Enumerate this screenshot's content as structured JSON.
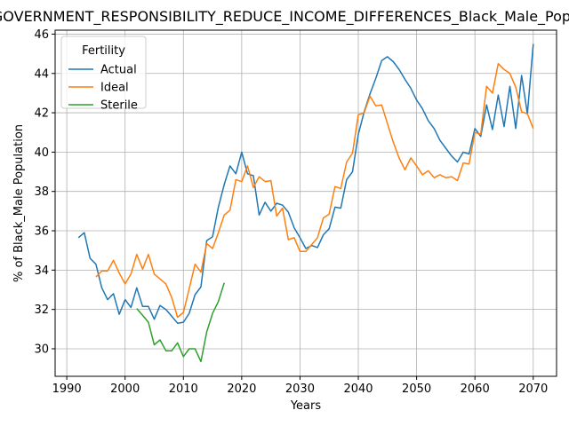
{
  "chart_data": {
    "type": "line",
    "title": "GOVERNMENT_RESPONSIBILITY_REDUCE_INCOME_DIFFERENCES_Black_Male_Population",
    "xlabel": "Years",
    "ylabel": "% of Black_Male Population",
    "xlim": [
      1988,
      2074
    ],
    "ylim": [
      28.6,
      46.2
    ],
    "xticks": [
      1990,
      2000,
      2010,
      2020,
      2030,
      2040,
      2050,
      2060,
      2070
    ],
    "yticks": [
      30,
      32,
      34,
      36,
      38,
      40,
      42,
      44,
      46
    ],
    "grid": true,
    "legend": {
      "title": "Fertility",
      "placement": "top-left"
    },
    "colors": {
      "Actual": "#1f77b4",
      "Ideal": "#ff7f0e",
      "Sterile": "#2ca02c"
    },
    "series": [
      {
        "name": "Actual",
        "x": [
          1992,
          1993,
          1994,
          1995,
          1996,
          1997,
          1998,
          1999,
          2000,
          2001,
          2002,
          2003,
          2004,
          2005,
          2006,
          2007,
          2008,
          2009,
          2010,
          2011,
          2012,
          2013,
          2014,
          2015,
          2016,
          2017,
          2018,
          2019,
          2020,
          2021,
          2022,
          2023,
          2024,
          2025,
          2026,
          2027,
          2028,
          2029,
          2030,
          2031,
          2032,
          2033,
          2034,
          2035,
          2036,
          2037,
          2038,
          2039,
          2040,
          2041,
          2042,
          2043,
          2044,
          2045,
          2046,
          2047,
          2048,
          2049,
          2050,
          2051,
          2052,
          2053,
          2054,
          2055,
          2056,
          2057,
          2058,
          2059,
          2060,
          2061,
          2062,
          2063,
          2064,
          2065,
          2066,
          2067,
          2068,
          2069,
          2070
        ],
        "values": [
          35.65,
          35.9,
          34.6,
          34.3,
          33.1,
          32.5,
          32.8,
          31.75,
          32.5,
          32.1,
          33.1,
          32.15,
          32.15,
          31.5,
          32.2,
          32.0,
          31.65,
          31.3,
          31.35,
          31.8,
          32.75,
          33.15,
          35.5,
          35.7,
          37.2,
          38.35,
          39.3,
          38.9,
          40.0,
          38.9,
          38.8,
          36.8,
          37.45,
          37.0,
          37.4,
          37.3,
          36.95,
          36.15,
          35.65,
          35.1,
          35.25,
          35.15,
          35.8,
          36.1,
          37.2,
          37.15,
          38.6,
          39.0,
          40.9,
          42.05,
          42.95,
          43.75,
          44.65,
          44.85,
          44.6,
          44.2,
          43.7,
          43.25,
          42.65,
          42.2,
          41.6,
          41.2,
          40.6,
          40.2,
          39.8,
          39.5,
          40.0,
          39.9,
          41.2,
          40.8,
          42.4,
          41.15,
          42.9,
          41.3,
          43.35,
          41.2,
          43.9,
          41.95,
          45.5
        ]
      },
      {
        "name": "Ideal",
        "x": [
          1995,
          1996,
          1997,
          1998,
          1999,
          2000,
          2001,
          2002,
          2003,
          2004,
          2005,
          2006,
          2007,
          2008,
          2009,
          2010,
          2011,
          2012,
          2013,
          2014,
          2015,
          2016,
          2017,
          2018,
          2019,
          2020,
          2021,
          2022,
          2023,
          2024,
          2025,
          2026,
          2027,
          2028,
          2029,
          2030,
          2031,
          2032,
          2033,
          2034,
          2035,
          2036,
          2037,
          2038,
          2039,
          2040,
          2041,
          2042,
          2043,
          2044,
          2045,
          2046,
          2047,
          2048,
          2049,
          2050,
          2051,
          2052,
          2053,
          2054,
          2055,
          2056,
          2057,
          2058,
          2059,
          2060,
          2061,
          2062,
          2063,
          2064,
          2065,
          2066,
          2067,
          2068,
          2069,
          2070
        ],
        "values": [
          33.65,
          33.95,
          33.95,
          34.5,
          33.85,
          33.3,
          33.8,
          34.8,
          34.05,
          34.8,
          33.8,
          33.55,
          33.3,
          32.6,
          31.6,
          31.85,
          33.05,
          34.3,
          33.9,
          35.35,
          35.1,
          35.9,
          36.8,
          37.05,
          38.6,
          38.5,
          39.3,
          38.2,
          38.75,
          38.5,
          38.55,
          36.75,
          37.15,
          35.55,
          35.65,
          34.95,
          34.95,
          35.3,
          35.65,
          36.65,
          36.85,
          38.25,
          38.15,
          39.5,
          39.95,
          41.9,
          42.0,
          42.85,
          42.35,
          42.4,
          41.45,
          40.5,
          39.7,
          39.1,
          39.7,
          39.3,
          38.85,
          39.05,
          38.7,
          38.85,
          38.7,
          38.75,
          38.55,
          39.45,
          39.4,
          41.0,
          40.9,
          43.35,
          43.0,
          44.5,
          44.2,
          44.0,
          43.3,
          42.05,
          41.95,
          41.2
        ]
      },
      {
        "name": "Sterile",
        "x": [
          2002,
          2003,
          2004,
          2005,
          2006,
          2007,
          2008,
          2009,
          2010,
          2011,
          2012,
          2013,
          2014,
          2015,
          2016,
          2017
        ],
        "values": [
          32.05,
          31.7,
          31.35,
          30.2,
          30.45,
          29.9,
          29.9,
          30.3,
          29.6,
          30.0,
          30.0,
          29.35,
          30.85,
          31.8,
          32.4,
          33.35
        ]
      }
    ]
  }
}
